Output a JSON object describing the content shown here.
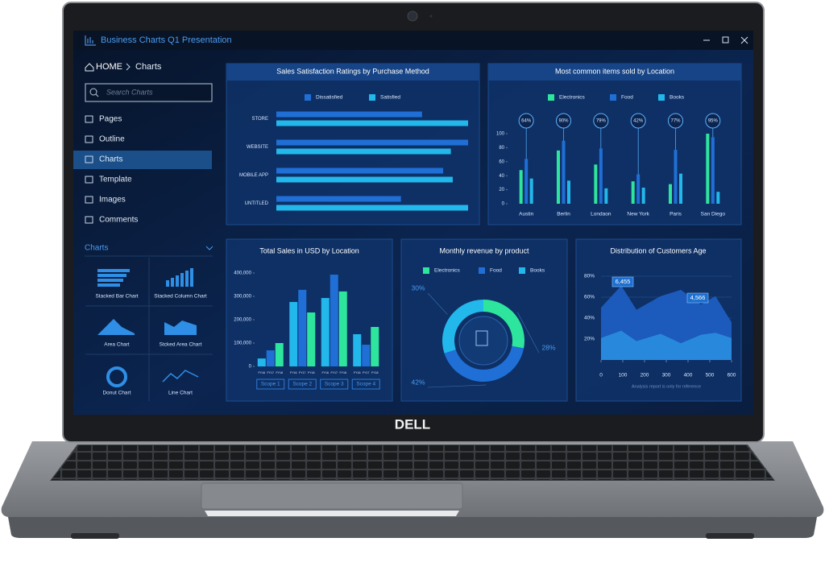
{
  "window": {
    "title": "Business Charts Q1 Presentation"
  },
  "sidebar": {
    "breadcrumb": [
      "HOME",
      "Charts"
    ],
    "search_placeholder": "Search Charts",
    "nav": [
      "Pages",
      "Outline",
      "Charts",
      "Template",
      "Images",
      "Comments"
    ],
    "section": "Charts",
    "thumbnails": [
      "Stacked Bar Chart",
      "Stacked Column Chart",
      "Area Chart",
      "Stcked Area Chart",
      "Donut Chart",
      "Line Chart"
    ]
  },
  "chart_data": [
    {
      "type": "hbar",
      "title": "Sales Satisfaction Ratings by Purchase Method",
      "categories": [
        "STORE",
        "WEBSITE",
        "MOBILE APP",
        "UNTITLED"
      ],
      "series": [
        {
          "name": "Dissatisfied",
          "color": "#1f6fd6",
          "values": [
            76,
            100,
            87,
            65
          ]
        },
        {
          "name": "Satisfied",
          "color": "#22b8ec",
          "values": [
            100,
            91,
            92,
            100
          ]
        }
      ],
      "xlim": [
        0,
        100
      ],
      "legend": "top"
    },
    {
      "type": "bar",
      "title": "Most common items sold by Location",
      "categories": [
        "Austin",
        "Berlin",
        "Londaon",
        "New York",
        "Paris",
        "San Diego"
      ],
      "series": [
        {
          "name": "Electronics",
          "color": "#2ee59d",
          "values": [
            48,
            76,
            56,
            32,
            28,
            100
          ]
        },
        {
          "name": "Food",
          "color": "#1f6fd6",
          "values": [
            64,
            90,
            79,
            42,
            77,
            95
          ],
          "value_labels": [
            "64%",
            "90%",
            "79%",
            "42%",
            "77%",
            "95%"
          ]
        },
        {
          "name": "Books",
          "color": "#22b8ec",
          "values": [
            36,
            33,
            22,
            23,
            43,
            17
          ]
        }
      ],
      "ylim": [
        0,
        100
      ],
      "yticks": [
        0,
        20,
        40,
        60,
        80,
        100
      ],
      "legend": "top"
    },
    {
      "type": "bar",
      "title": "Total Sales in USD by Location",
      "categories": [
        "Scope 1",
        "Scope 2",
        "Scope 3",
        "Scope 4"
      ],
      "series": [
        {
          "name": "FY16",
          "color": "#22b8ec",
          "values": [
            34000,
            276000,
            293000,
            138000
          ]
        },
        {
          "name": "FY17",
          "color": "#1f6fd6",
          "values": [
            69000,
            328000,
            393000,
            93000
          ]
        },
        {
          "name": "FY18",
          "color": "#2ee59d",
          "values": [
            100000,
            231000,
            321000,
            169000
          ]
        }
      ],
      "ylim": [
        0,
        400000
      ],
      "yticks": [
        0,
        {
          "value": 100000,
          "label": "100,000"
        },
        {
          "value": 200000,
          "label": "200,000"
        },
        {
          "value": 300000,
          "label": "300,000"
        },
        {
          "value": 400000,
          "label": "400,000"
        }
      ],
      "legend": "under-bars"
    },
    {
      "type": "donut",
      "title": "Monthly revenue by product",
      "categories": [
        "Electronics",
        "Food",
        "Books"
      ],
      "colors": [
        "#2ee59d",
        "#1f6fd6",
        "#22b8ec"
      ],
      "values": [
        28,
        42,
        30
      ],
      "value_labels": [
        "28%",
        "42%",
        "30%"
      ],
      "legend": "top"
    },
    {
      "type": "area",
      "title": "Distribution of Customers Age",
      "x": [
        0,
        93,
        163,
        274,
        367,
        459,
        526,
        600
      ],
      "series": [
        {
          "color": "#1e5fc4",
          "values": [
            50,
            71,
            48,
            61,
            67,
            53,
            61,
            36
          ]
        },
        {
          "color": "#2a8ee0",
          "values": [
            21,
            28,
            18,
            25,
            16,
            24,
            26,
            21
          ]
        }
      ],
      "xlim": [
        0,
        600
      ],
      "xticks": [
        0,
        100,
        200,
        300,
        400,
        500,
        600
      ],
      "ylim": [
        0,
        80
      ],
      "yticks": [
        {
          "value": 20,
          "label": "20%"
        },
        {
          "value": 40,
          "label": "40%"
        },
        {
          "value": 60,
          "label": "60%"
        },
        {
          "value": 80,
          "label": "80%"
        }
      ],
      "grid": true,
      "annotations": [
        "6,455",
        "4,566"
      ],
      "note": "Analysis report is only for reference"
    }
  ],
  "device": {
    "logo": "DELL"
  }
}
